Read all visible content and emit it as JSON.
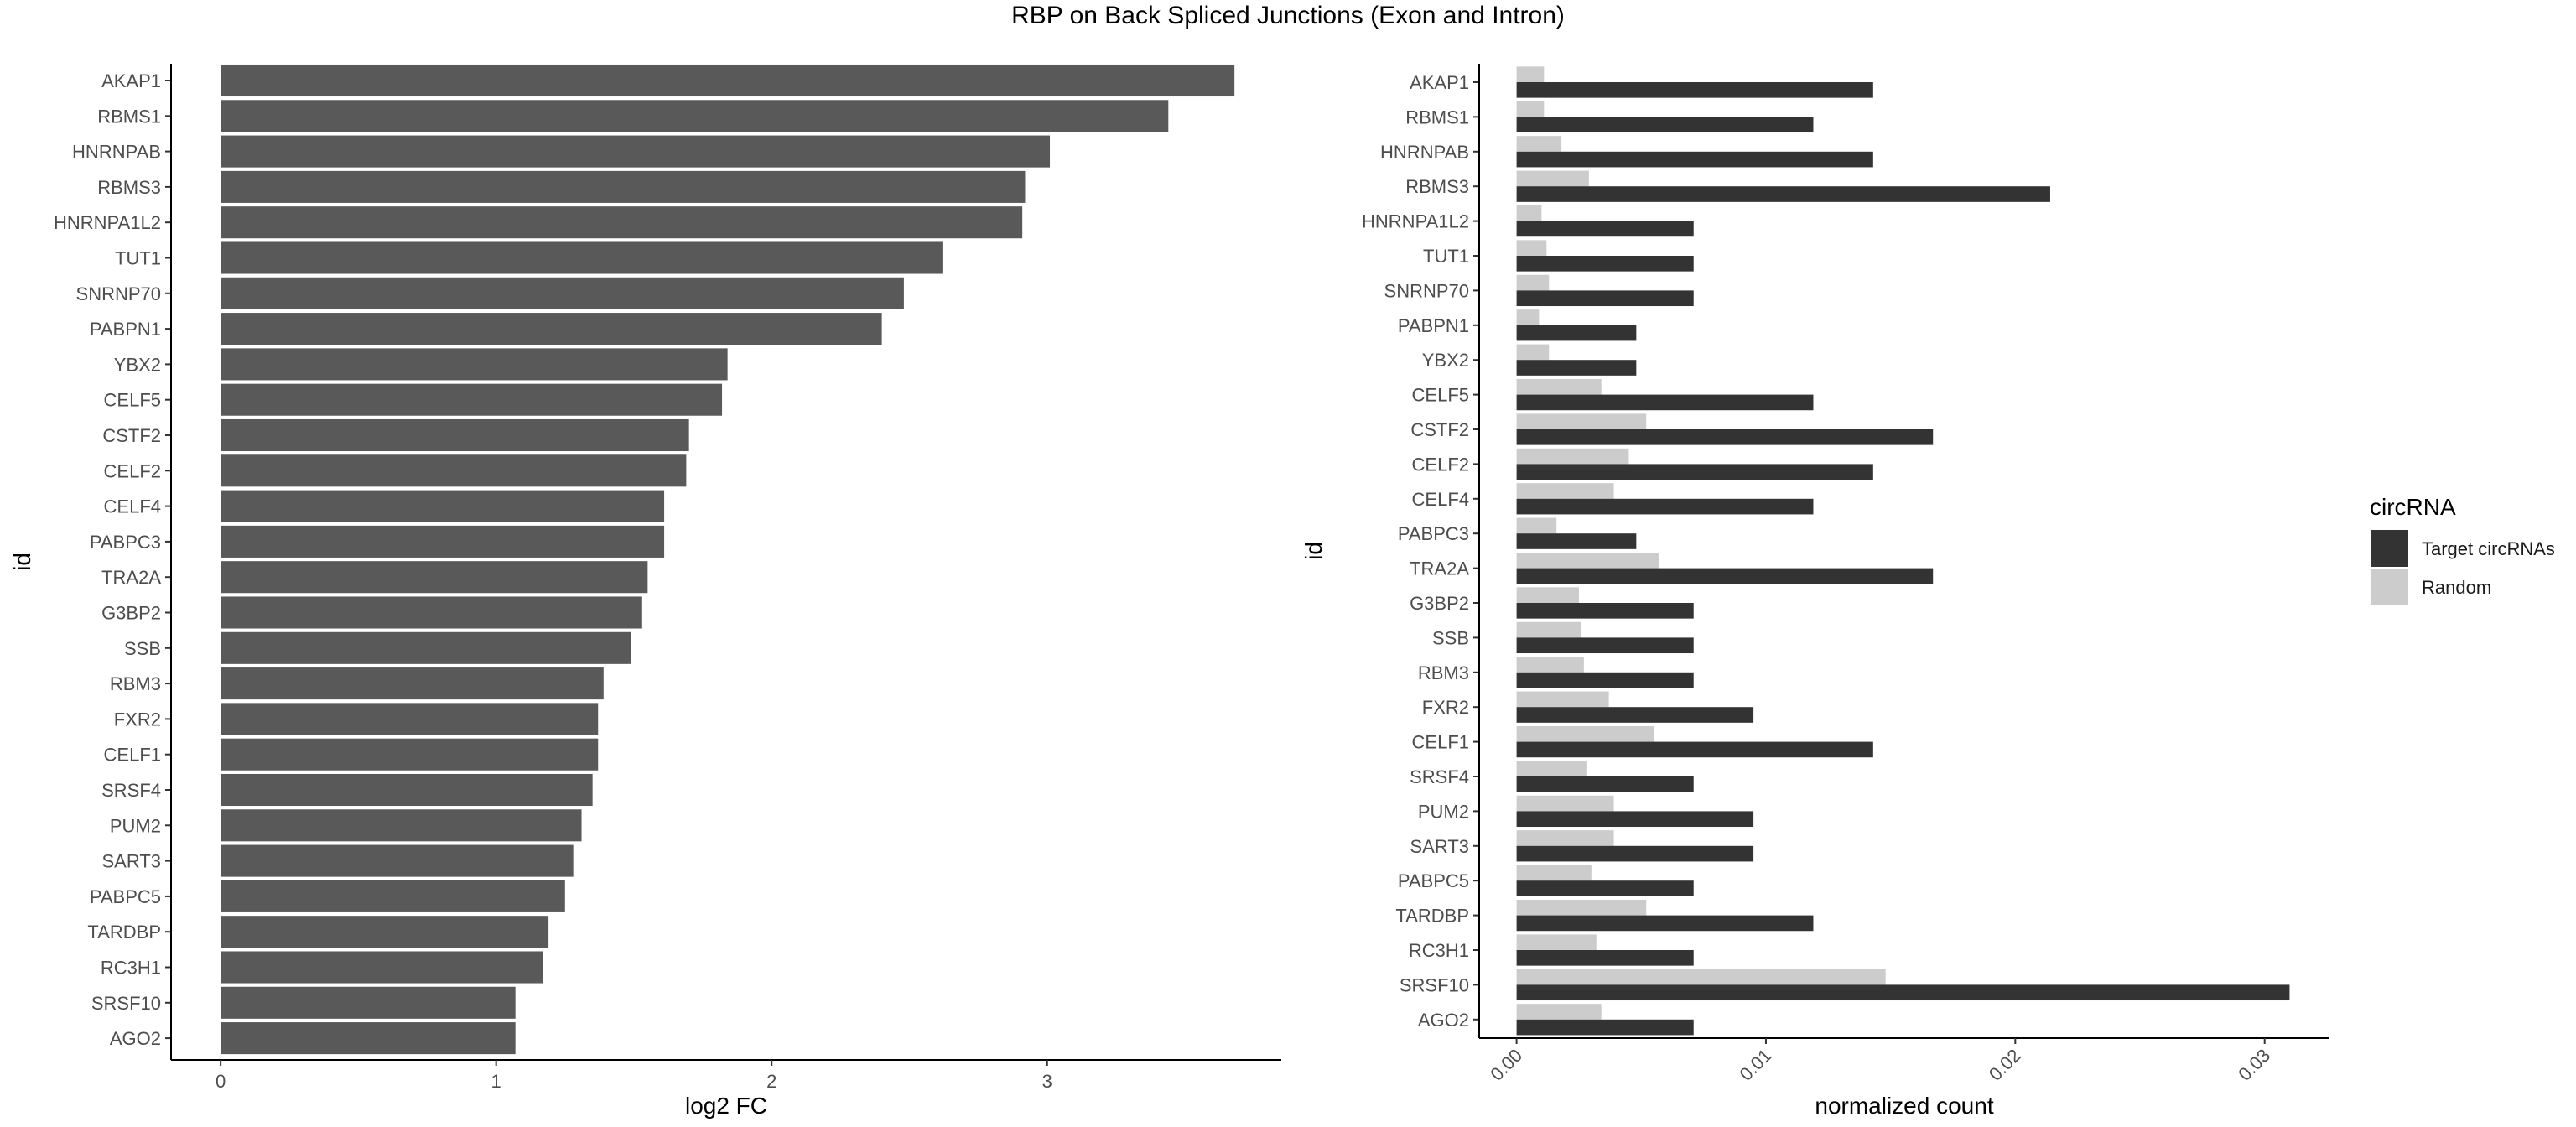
{
  "title": "RBP on Back Spliced Junctions (Exon and Intron)",
  "chart_data": [
    {
      "type": "bar",
      "orientation": "horizontal",
      "xlabel": "log2 FC",
      "ylabel": "id",
      "xlim": [
        -0.18,
        3.85
      ],
      "xticks": [
        0,
        1,
        2,
        3
      ],
      "bar_color": "#595959",
      "categories": [
        "AKAP1",
        "RBMS1",
        "HNRNPAB",
        "RBMS3",
        "HNRNPA1L2",
        "TUT1",
        "SNRNP70",
        "PABPN1",
        "YBX2",
        "CELF5",
        "CSTF2",
        "CELF2",
        "CELF4",
        "PABPC3",
        "TRA2A",
        "G3BP2",
        "SSB",
        "RBM3",
        "FXR2",
        "CELF1",
        "SRSF4",
        "PUM2",
        "SART3",
        "PABPC5",
        "TARDBP",
        "RC3H1",
        "SRSF10",
        "AGO2"
      ],
      "values": [
        3.68,
        3.44,
        3.01,
        2.92,
        2.91,
        2.62,
        2.48,
        2.4,
        1.84,
        1.82,
        1.7,
        1.69,
        1.61,
        1.61,
        1.55,
        1.53,
        1.49,
        1.39,
        1.37,
        1.37,
        1.35,
        1.31,
        1.28,
        1.25,
        1.19,
        1.17,
        1.07,
        1.07
      ]
    },
    {
      "type": "bar",
      "orientation": "horizontal",
      "grouped": true,
      "xlabel": "normalized count",
      "ylabel": "id",
      "xlim": [
        -0.0015,
        0.0326
      ],
      "xticks": [
        "0.00",
        "0.01",
        "0.02",
        "0.03"
      ],
      "xtick_values": [
        0,
        0.01,
        0.02,
        0.03
      ],
      "legend_title": "circRNA",
      "legend_position": "right",
      "categories": [
        "AKAP1",
        "RBMS1",
        "HNRNPAB",
        "RBMS3",
        "HNRNPA1L2",
        "TUT1",
        "SNRNP70",
        "PABPN1",
        "YBX2",
        "CELF5",
        "CSTF2",
        "CELF2",
        "CELF4",
        "PABPC3",
        "TRA2A",
        "G3BP2",
        "SSB",
        "RBM3",
        "FXR2",
        "CELF1",
        "SRSF4",
        "PUM2",
        "SART3",
        "PABPC5",
        "TARDBP",
        "RC3H1",
        "SRSF10",
        "AGO2"
      ],
      "series": [
        {
          "name": "Target circRNAs",
          "color": "#333333",
          "values": [
            0.0143,
            0.0119,
            0.0143,
            0.0214,
            0.0071,
            0.0071,
            0.0071,
            0.0048,
            0.0048,
            0.0119,
            0.0167,
            0.0143,
            0.0119,
            0.0048,
            0.0167,
            0.0071,
            0.0071,
            0.0071,
            0.0095,
            0.0143,
            0.0071,
            0.0095,
            0.0095,
            0.0071,
            0.0119,
            0.0071,
            0.031,
            0.0071
          ]
        },
        {
          "name": "Random",
          "color": "#cccccc",
          "values": [
            0.0011,
            0.0011,
            0.0018,
            0.0029,
            0.001,
            0.0012,
            0.0013,
            0.0009,
            0.0013,
            0.0034,
            0.0052,
            0.0045,
            0.0039,
            0.0016,
            0.0057,
            0.0025,
            0.0026,
            0.0027,
            0.0037,
            0.0055,
            0.0028,
            0.0039,
            0.0039,
            0.003,
            0.0052,
            0.0032,
            0.0148,
            0.0034
          ]
        }
      ]
    }
  ]
}
